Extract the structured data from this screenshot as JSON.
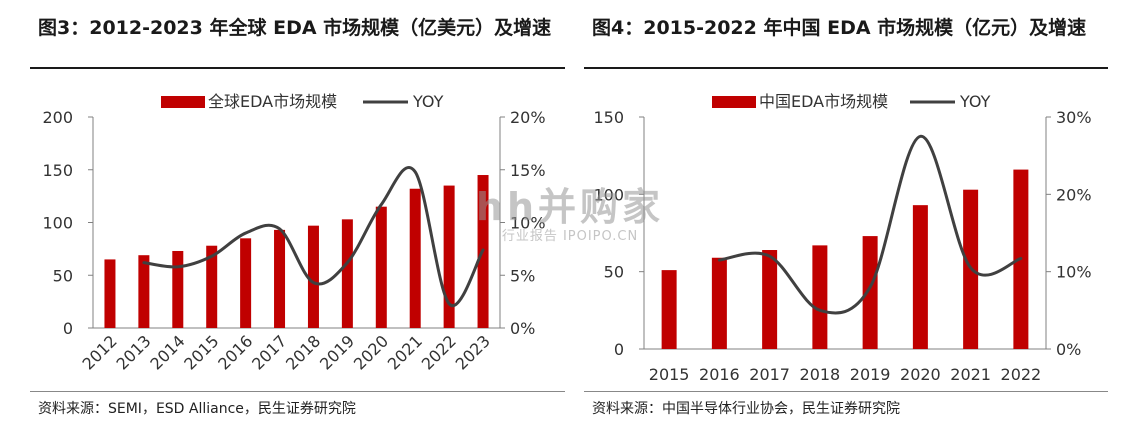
{
  "panels": [
    {
      "title": "图3：2012-2023 年全球 EDA 市场规模（亿美元）及增速",
      "source": "资料来源：SEMI，ESD Alliance，民生证券研究院"
    },
    {
      "title": "图4：2015-2022 年中国 EDA 市场规模（亿元）及增速",
      "source": "资料来源：中国半导体行业协会，民生证券研究院"
    }
  ],
  "watermark": {
    "main": "hh并购家",
    "sub": "行业报告 IPOIPO.CN"
  },
  "chart_data": [
    {
      "type": "bar+line",
      "categories": [
        "2012",
        "2013",
        "2014",
        "2015",
        "2016",
        "2017",
        "2018",
        "2019",
        "2020",
        "2021",
        "2022",
        "2023"
      ],
      "series": [
        {
          "name": "全球EDA市场规模",
          "kind": "bar",
          "axis": "left",
          "color": "#c00000",
          "values": [
            65,
            69,
            73,
            78,
            85,
            93,
            97,
            103,
            115,
            132,
            135,
            145
          ]
        },
        {
          "name": "YOY",
          "kind": "line",
          "axis": "right",
          "color": "#404040",
          "smooth": true,
          "values": [
            null,
            6.2,
            5.8,
            6.8,
            9.0,
            9.4,
            4.3,
            6.2,
            11.7,
            14.8,
            2.3,
            7.4
          ]
        }
      ],
      "y_left": {
        "range": [
          0,
          200
        ],
        "ticks": [
          "0",
          "50",
          "100",
          "150",
          "200"
        ]
      },
      "y_right": {
        "range": [
          0,
          20
        ],
        "ticks": [
          "0%",
          "5%",
          "10%",
          "15%",
          "20%"
        ]
      },
      "x_tick_rotation": "rotated",
      "legend": "top-center"
    },
    {
      "type": "bar+line",
      "categories": [
        "2015",
        "2016",
        "2017",
        "2018",
        "2019",
        "2020",
        "2021",
        "2022"
      ],
      "series": [
        {
          "name": "中国EDA市场规模",
          "kind": "bar",
          "axis": "left",
          "color": "#c00000",
          "values": [
            51,
            59,
            64,
            67,
            73,
            93,
            103,
            116
          ]
        },
        {
          "name": "YOY",
          "kind": "line",
          "axis": "right",
          "color": "#404040",
          "smooth": true,
          "values": [
            null,
            11.5,
            12.0,
            5.0,
            8.0,
            27.5,
            10.5,
            11.7
          ]
        }
      ],
      "y_left": {
        "range": [
          0,
          150
        ],
        "ticks": [
          "0",
          "50",
          "100",
          "150"
        ]
      },
      "y_right": {
        "range": [
          0,
          30
        ],
        "ticks": [
          "0%",
          "10%",
          "20%",
          "30%"
        ]
      },
      "x_tick_rotation": "horizontal",
      "legend": "top-center"
    }
  ]
}
